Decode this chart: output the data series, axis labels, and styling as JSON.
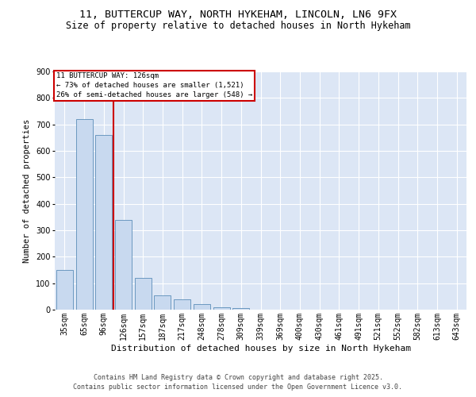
{
  "title": "11, BUTTERCUP WAY, NORTH HYKEHAM, LINCOLN, LN6 9FX",
  "subtitle": "Size of property relative to detached houses in North Hykeham",
  "xlabel": "Distribution of detached houses by size in North Hykeham",
  "ylabel": "Number of detached properties",
  "categories": [
    "35sqm",
    "65sqm",
    "96sqm",
    "126sqm",
    "157sqm",
    "187sqm",
    "217sqm",
    "248sqm",
    "278sqm",
    "309sqm",
    "339sqm",
    "369sqm",
    "400sqm",
    "430sqm",
    "461sqm",
    "491sqm",
    "521sqm",
    "552sqm",
    "582sqm",
    "613sqm",
    "643sqm"
  ],
  "values": [
    150,
    720,
    660,
    340,
    120,
    55,
    40,
    20,
    10,
    5,
    0,
    0,
    0,
    0,
    0,
    0,
    0,
    0,
    0,
    0,
    0
  ],
  "bar_color": "#c8d9ef",
  "bar_edge_color": "#5b8db8",
  "vline_color": "#cc0000",
  "vline_index": 3,
  "annotation_title": "11 BUTTERCUP WAY: 126sqm",
  "annotation_line1": "← 73% of detached houses are smaller (1,521)",
  "annotation_line2": "26% of semi-detached houses are larger (548) →",
  "annotation_box_edge_color": "#cc0000",
  "annotation_bg": "#ffffff",
  "ylim": [
    0,
    900
  ],
  "yticks": [
    0,
    100,
    200,
    300,
    400,
    500,
    600,
    700,
    800,
    900
  ],
  "bg_color": "#dce6f5",
  "footer_line1": "Contains HM Land Registry data © Crown copyright and database right 2025.",
  "footer_line2": "Contains public sector information licensed under the Open Government Licence v3.0.",
  "title_fontsize": 9.5,
  "subtitle_fontsize": 8.5,
  "xlabel_fontsize": 8,
  "ylabel_fontsize": 7.5,
  "tick_fontsize": 7,
  "annot_fontsize": 6.5,
  "footer_fontsize": 6
}
